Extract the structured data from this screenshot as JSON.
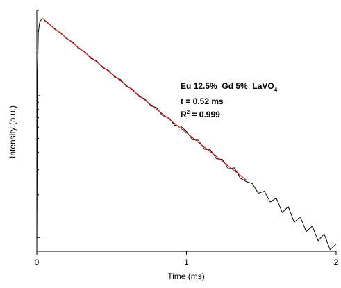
{
  "chart_data": {
    "type": "line",
    "x_label": "Time (ms)",
    "y_label": "Intensity (a.u.)",
    "annotations": [
      [
        "Eu 12.5%_Gd 5%_LaVO",
        "4"
      ],
      [
        "t = 0.52 ms"
      ],
      [
        "R",
        "2",
        " = 0.999"
      ]
    ],
    "xlim": [
      0,
      2
    ],
    "xticks": [
      0,
      1,
      2
    ],
    "ylim": [
      80,
      4000
    ],
    "y_log": true,
    "yticks": [
      100,
      200,
      300,
      400,
      500,
      600,
      700,
      800,
      900,
      1000,
      2000,
      3000,
      4000
    ],
    "series": [
      {
        "color": "#000000",
        "x": [
          0,
          0.005,
          0.01,
          0.02,
          0.04,
          0.08,
          0.12,
          0.16,
          0.2,
          0.24,
          0.28,
          0.32,
          0.36,
          0.4,
          0.44,
          0.48,
          0.52,
          0.56,
          0.6,
          0.64,
          0.68,
          0.72,
          0.76,
          0.8,
          0.84,
          0.88,
          0.92,
          0.96,
          1.0,
          1.04,
          1.08,
          1.12,
          1.16,
          1.2,
          1.24,
          1.28,
          1.32,
          1.36,
          1.4,
          1.44,
          1.48,
          1.52,
          1.56,
          1.6,
          1.64,
          1.68,
          1.72,
          1.76,
          1.8,
          1.84,
          1.88,
          1.92,
          1.96,
          2.0
        ],
        "values": [
          80,
          1500,
          2800,
          3350,
          3500,
          3230,
          2940,
          2780,
          2520,
          2390,
          2150,
          2050,
          1840,
          1760,
          1580,
          1510,
          1350,
          1300,
          1160,
          1110,
          990,
          955,
          850,
          825,
          725,
          705,
          620,
          610,
          560,
          490,
          485,
          420,
          415,
          360,
          355,
          305,
          310,
          262,
          248,
          240,
          205,
          212,
          178,
          190,
          150,
          165,
          128,
          140,
          110,
          120,
          95,
          106,
          82,
          90
        ]
      },
      {
        "color": "#d62020",
        "x": [
          0.05,
          0.1,
          0.2,
          0.3,
          0.4,
          0.5,
          0.6,
          0.7,
          0.8,
          0.9,
          1.0,
          1.1,
          1.2,
          1.3,
          1.4
        ],
        "values": [
          3397,
          3086,
          2547,
          2101,
          1734,
          1430,
          1180,
          974,
          804,
          662,
          548,
          451,
          373,
          307,
          254
        ]
      }
    ]
  }
}
